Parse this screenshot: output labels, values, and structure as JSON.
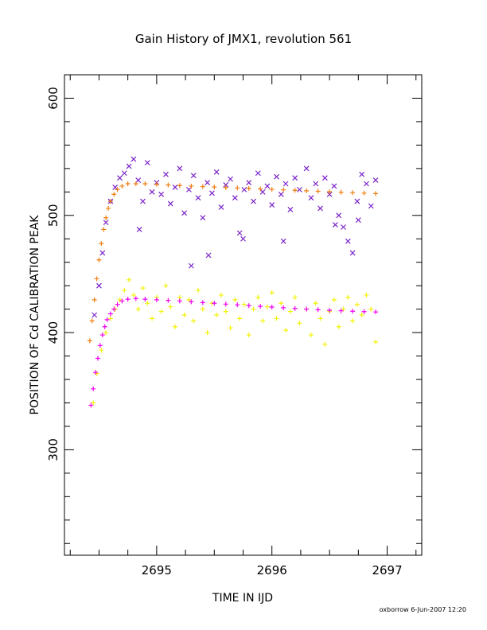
{
  "chart_data": {
    "type": "scatter",
    "title": "Gain History of JMX1, revolution 561",
    "xlabel": "TIME IN IJD",
    "ylabel": "POSITION OF Cd CALIBRATION PEAK",
    "xlim": [
      2694.2,
      2697.3
    ],
    "ylim": [
      210,
      620
    ],
    "xticks": [
      2695,
      2696,
      2697
    ],
    "xtick_labels": [
      "2695",
      "2696",
      "2697"
    ],
    "yticks": [
      300,
      400,
      500,
      600
    ],
    "ytick_labels": [
      "300",
      "400",
      "500",
      "600"
    ],
    "grid": false,
    "legend": "none",
    "series": [
      {
        "marker": "x",
        "color": "#7a22c8",
        "points": [
          [
            2694.46,
            415
          ],
          [
            2694.5,
            440
          ],
          [
            2694.53,
            468
          ],
          [
            2694.56,
            494
          ],
          [
            2694.6,
            512
          ],
          [
            2694.64,
            524
          ],
          [
            2694.68,
            532
          ],
          [
            2694.72,
            536
          ],
          [
            2694.76,
            542
          ],
          [
            2694.8,
            548
          ],
          [
            2694.84,
            530
          ],
          [
            2694.88,
            512
          ],
          [
            2694.92,
            545
          ],
          [
            2694.96,
            520
          ],
          [
            2695.0,
            528
          ],
          [
            2695.04,
            518
          ],
          [
            2695.08,
            535
          ],
          [
            2695.12,
            510
          ],
          [
            2695.16,
            524
          ],
          [
            2695.2,
            540
          ],
          [
            2695.24,
            502
          ],
          [
            2695.28,
            522
          ],
          [
            2695.32,
            534
          ],
          [
            2695.36,
            515
          ],
          [
            2695.4,
            498
          ],
          [
            2695.44,
            528
          ],
          [
            2695.48,
            519
          ],
          [
            2695.52,
            537
          ],
          [
            2695.56,
            507
          ],
          [
            2695.6,
            526
          ],
          [
            2695.64,
            531
          ],
          [
            2695.68,
            515
          ],
          [
            2695.72,
            485
          ],
          [
            2695.76,
            522
          ],
          [
            2695.8,
            528
          ],
          [
            2695.84,
            512
          ],
          [
            2695.88,
            536
          ],
          [
            2695.92,
            520
          ],
          [
            2695.96,
            525
          ],
          [
            2696.0,
            509
          ],
          [
            2696.04,
            533
          ],
          [
            2696.08,
            518
          ],
          [
            2696.12,
            527
          ],
          [
            2696.16,
            505
          ],
          [
            2696.2,
            532
          ],
          [
            2696.24,
            522
          ],
          [
            2696.3,
            540
          ],
          [
            2696.34,
            515
          ],
          [
            2696.38,
            527
          ],
          [
            2696.42,
            506
          ],
          [
            2696.46,
            532
          ],
          [
            2696.5,
            518
          ],
          [
            2696.54,
            525
          ],
          [
            2696.58,
            500
          ],
          [
            2696.62,
            490
          ],
          [
            2696.66,
            478
          ],
          [
            2696.7,
            468
          ],
          [
            2696.74,
            512
          ],
          [
            2696.78,
            535
          ],
          [
            2696.82,
            527
          ],
          [
            2696.86,
            508
          ],
          [
            2696.9,
            530
          ],
          [
            2694.85,
            488
          ],
          [
            2695.3,
            457
          ],
          [
            2695.45,
            466
          ],
          [
            2695.75,
            480
          ],
          [
            2696.1,
            478
          ],
          [
            2696.55,
            492
          ],
          [
            2696.75,
            496
          ]
        ]
      },
      {
        "marker": "+",
        "color": "#f2f20a",
        "points": [
          [
            2694.45,
            340
          ],
          [
            2694.48,
            365
          ],
          [
            2694.52,
            385
          ],
          [
            2694.56,
            400
          ],
          [
            2694.6,
            412
          ],
          [
            2694.64,
            420
          ],
          [
            2694.68,
            428
          ],
          [
            2694.72,
            436
          ],
          [
            2694.76,
            445
          ],
          [
            2694.8,
            432
          ],
          [
            2694.84,
            420
          ],
          [
            2694.88,
            438
          ],
          [
            2694.92,
            425
          ],
          [
            2694.96,
            412
          ],
          [
            2695.0,
            430
          ],
          [
            2695.04,
            418
          ],
          [
            2695.08,
            440
          ],
          [
            2695.12,
            422
          ],
          [
            2695.16,
            405
          ],
          [
            2695.2,
            430
          ],
          [
            2695.24,
            415
          ],
          [
            2695.28,
            428
          ],
          [
            2695.32,
            410
          ],
          [
            2695.36,
            436
          ],
          [
            2695.4,
            420
          ],
          [
            2695.44,
            400
          ],
          [
            2695.48,
            425
          ],
          [
            2695.52,
            415
          ],
          [
            2695.56,
            432
          ],
          [
            2695.6,
            418
          ],
          [
            2695.64,
            404
          ],
          [
            2695.68,
            428
          ],
          [
            2695.72,
            412
          ],
          [
            2695.76,
            424
          ],
          [
            2695.8,
            398
          ],
          [
            2695.84,
            420
          ],
          [
            2695.88,
            430
          ],
          [
            2695.92,
            410
          ],
          [
            2695.96,
            422
          ],
          [
            2696.0,
            434
          ],
          [
            2696.04,
            412
          ],
          [
            2696.08,
            425
          ],
          [
            2696.12,
            402
          ],
          [
            2696.16,
            418
          ],
          [
            2696.2,
            430
          ],
          [
            2696.24,
            408
          ],
          [
            2696.3,
            420
          ],
          [
            2696.34,
            398
          ],
          [
            2696.38,
            425
          ],
          [
            2696.42,
            412
          ],
          [
            2696.46,
            390
          ],
          [
            2696.5,
            418
          ],
          [
            2696.54,
            428
          ],
          [
            2696.58,
            405
          ],
          [
            2696.62,
            420
          ],
          [
            2696.66,
            430
          ],
          [
            2696.7,
            410
          ],
          [
            2696.74,
            424
          ],
          [
            2696.78,
            415
          ],
          [
            2696.82,
            432
          ],
          [
            2696.86,
            420
          ],
          [
            2696.9,
            392
          ]
        ]
      },
      {
        "marker": "+",
        "color": "#f07d10",
        "points": [
          [
            2694.42,
            393
          ],
          [
            2694.44,
            410
          ],
          [
            2694.46,
            428
          ],
          [
            2694.48,
            446
          ],
          [
            2694.5,
            462
          ],
          [
            2694.52,
            476
          ],
          [
            2694.54,
            488
          ],
          [
            2694.56,
            498
          ],
          [
            2694.58,
            506
          ],
          [
            2694.6,
            512
          ],
          [
            2694.63,
            518
          ],
          [
            2694.66,
            522
          ],
          [
            2694.7,
            525
          ],
          [
            2694.75,
            527
          ],
          [
            2694.82,
            527
          ],
          [
            2694.9,
            527
          ],
          [
            2695.0,
            526.5
          ],
          [
            2695.1,
            526
          ],
          [
            2695.2,
            525.5
          ],
          [
            2695.3,
            525
          ],
          [
            2695.4,
            524.6
          ],
          [
            2695.5,
            524.2
          ],
          [
            2695.6,
            523.8
          ],
          [
            2695.7,
            523.4
          ],
          [
            2695.8,
            523
          ],
          [
            2695.9,
            522.6
          ],
          [
            2696.0,
            522.2
          ],
          [
            2696.1,
            521.8
          ],
          [
            2696.2,
            521.4
          ],
          [
            2696.3,
            521
          ],
          [
            2696.4,
            520.6
          ],
          [
            2696.5,
            520.2
          ],
          [
            2696.6,
            519.8
          ],
          [
            2696.7,
            519.4
          ],
          [
            2696.8,
            519
          ],
          [
            2696.9,
            518.6
          ]
        ]
      },
      {
        "marker": "+",
        "color": "#f000f0",
        "points": [
          [
            2694.43,
            338
          ],
          [
            2694.45,
            352
          ],
          [
            2694.47,
            366
          ],
          [
            2694.49,
            378
          ],
          [
            2694.51,
            389
          ],
          [
            2694.53,
            398
          ],
          [
            2694.55,
            405
          ],
          [
            2694.57,
            411
          ],
          [
            2694.6,
            416
          ],
          [
            2694.63,
            420
          ],
          [
            2694.66,
            424
          ],
          [
            2694.7,
            427
          ],
          [
            2694.75,
            428.5
          ],
          [
            2694.82,
            429
          ],
          [
            2694.9,
            428.5
          ],
          [
            2695.0,
            428
          ],
          [
            2695.1,
            427.5
          ],
          [
            2695.2,
            427
          ],
          [
            2695.3,
            426.3
          ],
          [
            2695.4,
            425.6
          ],
          [
            2695.5,
            425
          ],
          [
            2695.6,
            424.3
          ],
          [
            2695.7,
            423.7
          ],
          [
            2695.8,
            423
          ],
          [
            2695.9,
            422.4
          ],
          [
            2696.0,
            421.8
          ],
          [
            2696.1,
            421.2
          ],
          [
            2696.2,
            420.6
          ],
          [
            2696.3,
            420
          ],
          [
            2696.4,
            419.5
          ],
          [
            2696.5,
            419
          ],
          [
            2696.6,
            418.6
          ],
          [
            2696.7,
            418.2
          ],
          [
            2696.8,
            417.9
          ],
          [
            2696.9,
            417.6
          ]
        ]
      }
    ]
  },
  "credit": "oxborrow  6-Jun-2007 12:20"
}
